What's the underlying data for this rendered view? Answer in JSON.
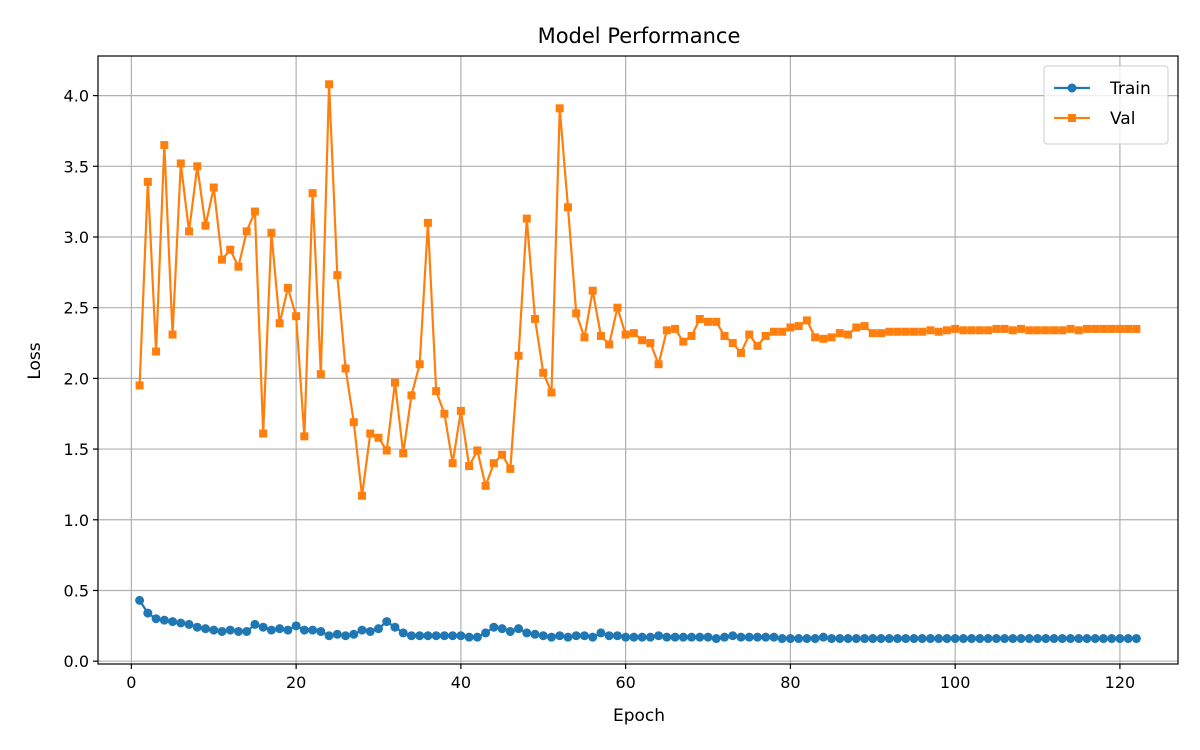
{
  "chart_data": {
    "type": "line",
    "title": "Model Performance",
    "xlabel": "Epoch",
    "ylabel": "Loss",
    "xlim": [
      -4.05,
      127.05
    ],
    "ylim": [
      -0.02,
      4.28
    ],
    "xticks": [
      0,
      20,
      40,
      60,
      80,
      100,
      120
    ],
    "yticks": [
      0.0,
      0.5,
      1.0,
      1.5,
      2.0,
      2.5,
      3.0,
      3.5,
      4.0
    ],
    "xtick_labels": [
      "0",
      "20",
      "40",
      "60",
      "80",
      "100",
      "120"
    ],
    "ytick_labels": [
      "0.0",
      "0.5",
      "1.0",
      "1.5",
      "2.0",
      "2.5",
      "3.0",
      "3.5",
      "4.0"
    ],
    "grid": true,
    "legend_position": "top-right",
    "x": [
      1,
      2,
      3,
      4,
      5,
      6,
      7,
      8,
      9,
      10,
      11,
      12,
      13,
      14,
      15,
      16,
      17,
      18,
      19,
      20,
      21,
      22,
      23,
      24,
      25,
      26,
      27,
      28,
      29,
      30,
      31,
      32,
      33,
      34,
      35,
      36,
      37,
      38,
      39,
      40,
      41,
      42,
      43,
      44,
      45,
      46,
      47,
      48,
      49,
      50,
      51,
      52,
      53,
      54,
      55,
      56,
      57,
      58,
      59,
      60,
      61,
      62,
      63,
      64,
      65,
      66,
      67,
      68,
      69,
      70,
      71,
      72,
      73,
      74,
      75,
      76,
      77,
      78,
      79,
      80,
      81,
      82,
      83,
      84,
      85,
      86,
      87,
      88,
      89,
      90,
      91,
      92,
      93,
      94,
      95,
      96,
      97,
      98,
      99,
      100,
      101,
      102,
      103,
      104,
      105,
      106,
      107,
      108,
      109,
      110,
      111,
      112,
      113,
      114,
      115,
      116,
      117,
      118,
      119,
      120,
      121,
      122
    ],
    "series": [
      {
        "name": "Train",
        "color": "#1f77b4",
        "marker": "circle",
        "values": [
          0.43,
          0.34,
          0.3,
          0.29,
          0.28,
          0.27,
          0.26,
          0.24,
          0.23,
          0.22,
          0.21,
          0.22,
          0.21,
          0.21,
          0.26,
          0.24,
          0.22,
          0.23,
          0.22,
          0.25,
          0.22,
          0.22,
          0.21,
          0.18,
          0.19,
          0.18,
          0.19,
          0.22,
          0.21,
          0.23,
          0.28,
          0.24,
          0.2,
          0.18,
          0.18,
          0.18,
          0.18,
          0.18,
          0.18,
          0.18,
          0.17,
          0.17,
          0.2,
          0.24,
          0.23,
          0.21,
          0.23,
          0.2,
          0.19,
          0.18,
          0.17,
          0.18,
          0.17,
          0.18,
          0.18,
          0.17,
          0.2,
          0.18,
          0.18,
          0.17,
          0.17,
          0.17,
          0.17,
          0.18,
          0.17,
          0.17,
          0.17,
          0.17,
          0.17,
          0.17,
          0.16,
          0.17,
          0.18,
          0.17,
          0.17,
          0.17,
          0.17,
          0.17,
          0.16,
          0.16,
          0.16,
          0.16,
          0.16,
          0.17,
          0.16,
          0.16,
          0.16,
          0.16,
          0.16,
          0.16,
          0.16,
          0.16,
          0.16,
          0.16,
          0.16,
          0.16,
          0.16,
          0.16,
          0.16,
          0.16,
          0.16,
          0.16,
          0.16,
          0.16,
          0.16,
          0.16,
          0.16,
          0.16,
          0.16,
          0.16,
          0.16,
          0.16,
          0.16,
          0.16,
          0.16,
          0.16,
          0.16,
          0.16,
          0.16,
          0.16,
          0.16,
          0.16
        ]
      },
      {
        "name": "Val",
        "color": "#ff7f0e",
        "marker": "square",
        "values": [
          1.95,
          3.39,
          2.19,
          3.65,
          2.31,
          3.52,
          3.04,
          3.5,
          3.08,
          3.35,
          2.84,
          2.91,
          2.79,
          3.04,
          3.18,
          1.61,
          3.03,
          2.39,
          2.64,
          2.44,
          1.59,
          3.31,
          2.03,
          4.08,
          2.73,
          2.07,
          1.69,
          1.17,
          1.61,
          1.58,
          1.49,
          1.97,
          1.47,
          1.88,
          2.1,
          3.1,
          1.91,
          1.75,
          1.4,
          1.77,
          1.38,
          1.49,
          1.24,
          1.4,
          1.46,
          1.36,
          2.16,
          3.13,
          2.42,
          2.04,
          1.9,
          3.91,
          3.21,
          2.46,
          2.29,
          2.62,
          2.3,
          2.24,
          2.5,
          2.31,
          2.32,
          2.27,
          2.25,
          2.1,
          2.34,
          2.35,
          2.26,
          2.3,
          2.42,
          2.4,
          2.4,
          2.3,
          2.25,
          2.18,
          2.31,
          2.23,
          2.3,
          2.33,
          2.33,
          2.36,
          2.37,
          2.41,
          2.29,
          2.28,
          2.29,
          2.32,
          2.31,
          2.36,
          2.37,
          2.32,
          2.32,
          2.33,
          2.33,
          2.33,
          2.33,
          2.33,
          2.34,
          2.33,
          2.34,
          2.35,
          2.34,
          2.34,
          2.34,
          2.34,
          2.35,
          2.35,
          2.34,
          2.35,
          2.34,
          2.34,
          2.34,
          2.34,
          2.34,
          2.35,
          2.34,
          2.35,
          2.35,
          2.35,
          2.35,
          2.35,
          2.35,
          2.35
        ]
      }
    ]
  }
}
